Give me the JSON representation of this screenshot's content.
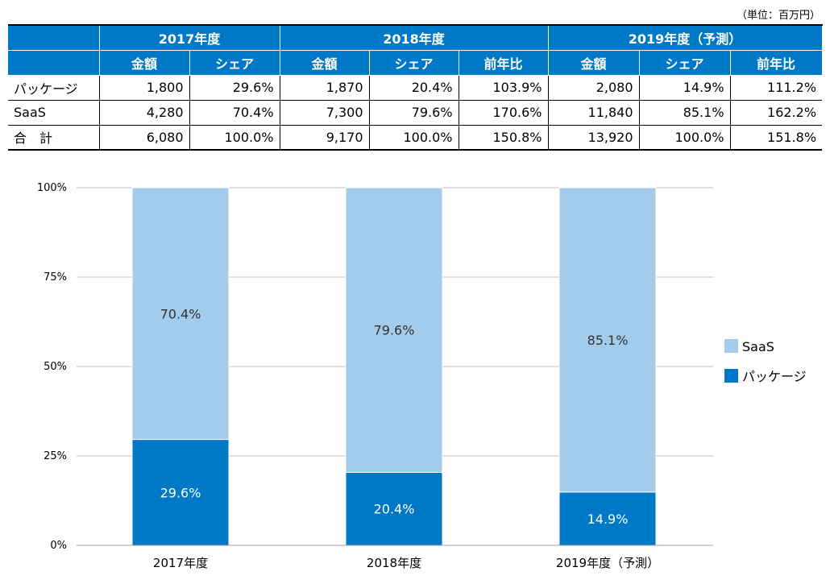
{
  "unit_note": "（単位：百万円）",
  "table": {
    "years": [
      "2017年度",
      "2018年度",
      "2019年度（予測）"
    ],
    "subheaders": [
      "金額",
      "シェア",
      "金額",
      "シェア",
      "前年比",
      "金額",
      "シェア",
      "前年比"
    ],
    "rows": [
      {
        "label": "パッケージ",
        "cells": [
          "1,800",
          "29.6%",
          "1,870",
          "20.4%",
          "103.9%",
          "2,080",
          "14.9%",
          "111.2%"
        ]
      },
      {
        "label": "SaaS",
        "cells": [
          "4,280",
          "70.4%",
          "7,300",
          "79.6%",
          "170.6%",
          "11,840",
          "85.1%",
          "162.2%"
        ]
      },
      {
        "label": "合　計",
        "cells": [
          "6,080",
          "100.0%",
          "9,170",
          "100.0%",
          "150.8%",
          "13,920",
          "100.0%",
          "151.8%"
        ]
      }
    ]
  },
  "chart_data": {
    "type": "bar",
    "stacked": true,
    "categories": [
      "2017年度",
      "2018年度",
      "2019年度（予測）"
    ],
    "series": [
      {
        "name": "パッケージ",
        "values": [
          29.6,
          20.4,
          14.9
        ],
        "labels": [
          "29.6%",
          "20.4%",
          "14.9%"
        ],
        "color": "#0078c8"
      },
      {
        "name": "SaaS",
        "values": [
          70.4,
          79.6,
          85.1
        ],
        "labels": [
          "70.4%",
          "79.6%",
          "85.1%"
        ],
        "color": "#a2cbec"
      }
    ],
    "ylim": [
      0,
      100
    ],
    "yticks": [
      0,
      25,
      50,
      75,
      100
    ],
    "ytick_labels": [
      "0%",
      "25%",
      "50%",
      "75%",
      "100%"
    ],
    "grid": true,
    "legend": {
      "position": "right",
      "entries": [
        "SaaS",
        "パッケージ"
      ]
    },
    "label_colors": {
      "パッケージ": "#ffffff",
      "SaaS": "#333333"
    }
  }
}
